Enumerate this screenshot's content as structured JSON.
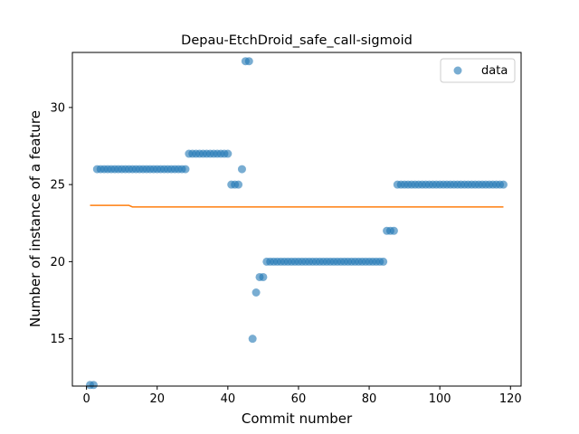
{
  "chart_data": {
    "type": "scatter",
    "title": "Depau-EtchDroid_safe_call-sigmoid",
    "xlabel": "Commit number",
    "ylabel": "Number of instance of a feature",
    "xlim": [
      -4,
      123
    ],
    "ylim": [
      11.93,
      33.57
    ],
    "xticks": [
      0,
      20,
      40,
      60,
      80,
      100,
      120
    ],
    "yticks": [
      15,
      20,
      25,
      30
    ],
    "grid": false,
    "legend": {
      "position": "top-right",
      "entries": [
        "data"
      ]
    },
    "colors": {
      "data": "#1f77b4",
      "fit": "#ff7f0e"
    },
    "series": [
      {
        "name": "data",
        "kind": "scatter",
        "points": [
          [
            1,
            12
          ],
          [
            2,
            12
          ],
          [
            3,
            26
          ],
          [
            4,
            26
          ],
          [
            5,
            26
          ],
          [
            6,
            26
          ],
          [
            7,
            26
          ],
          [
            8,
            26
          ],
          [
            9,
            26
          ],
          [
            10,
            26
          ],
          [
            11,
            26
          ],
          [
            12,
            26
          ],
          [
            13,
            26
          ],
          [
            14,
            26
          ],
          [
            15,
            26
          ],
          [
            16,
            26
          ],
          [
            17,
            26
          ],
          [
            18,
            26
          ],
          [
            19,
            26
          ],
          [
            20,
            26
          ],
          [
            21,
            26
          ],
          [
            22,
            26
          ],
          [
            23,
            26
          ],
          [
            24,
            26
          ],
          [
            25,
            26
          ],
          [
            26,
            26
          ],
          [
            27,
            26
          ],
          [
            28,
            26
          ],
          [
            29,
            27
          ],
          [
            30,
            27
          ],
          [
            31,
            27
          ],
          [
            32,
            27
          ],
          [
            33,
            27
          ],
          [
            34,
            27
          ],
          [
            35,
            27
          ],
          [
            36,
            27
          ],
          [
            37,
            27
          ],
          [
            38,
            27
          ],
          [
            39,
            27
          ],
          [
            40,
            27
          ],
          [
            41,
            25
          ],
          [
            42,
            25
          ],
          [
            43,
            25
          ],
          [
            44,
            26
          ],
          [
            45,
            33
          ],
          [
            46,
            33
          ],
          [
            47,
            15
          ],
          [
            48,
            18
          ],
          [
            49,
            19
          ],
          [
            50,
            19
          ],
          [
            51,
            20
          ],
          [
            52,
            20
          ],
          [
            53,
            20
          ],
          [
            54,
            20
          ],
          [
            55,
            20
          ],
          [
            56,
            20
          ],
          [
            57,
            20
          ],
          [
            58,
            20
          ],
          [
            59,
            20
          ],
          [
            60,
            20
          ],
          [
            61,
            20
          ],
          [
            62,
            20
          ],
          [
            63,
            20
          ],
          [
            64,
            20
          ],
          [
            65,
            20
          ],
          [
            66,
            20
          ],
          [
            67,
            20
          ],
          [
            68,
            20
          ],
          [
            69,
            20
          ],
          [
            70,
            20
          ],
          [
            71,
            20
          ],
          [
            72,
            20
          ],
          [
            73,
            20
          ],
          [
            74,
            20
          ],
          [
            75,
            20
          ],
          [
            76,
            20
          ],
          [
            77,
            20
          ],
          [
            78,
            20
          ],
          [
            79,
            20
          ],
          [
            80,
            20
          ],
          [
            81,
            20
          ],
          [
            82,
            20
          ],
          [
            83,
            20
          ],
          [
            84,
            20
          ],
          [
            85,
            22
          ],
          [
            86,
            22
          ],
          [
            87,
            22
          ],
          [
            88,
            25
          ],
          [
            89,
            25
          ],
          [
            90,
            25
          ],
          [
            91,
            25
          ],
          [
            92,
            25
          ],
          [
            93,
            25
          ],
          [
            94,
            25
          ],
          [
            95,
            25
          ],
          [
            96,
            25
          ],
          [
            97,
            25
          ],
          [
            98,
            25
          ],
          [
            99,
            25
          ],
          [
            100,
            25
          ],
          [
            101,
            25
          ],
          [
            102,
            25
          ],
          [
            103,
            25
          ],
          [
            104,
            25
          ],
          [
            105,
            25
          ],
          [
            106,
            25
          ],
          [
            107,
            25
          ],
          [
            108,
            25
          ],
          [
            109,
            25
          ],
          [
            110,
            25
          ],
          [
            111,
            25
          ],
          [
            112,
            25
          ],
          [
            113,
            25
          ],
          [
            114,
            25
          ],
          [
            115,
            25
          ],
          [
            116,
            25
          ],
          [
            117,
            25
          ],
          [
            118,
            25
          ]
        ]
      },
      {
        "kind": "line",
        "points": [
          [
            1,
            23.65
          ],
          [
            12,
            23.65
          ],
          [
            13,
            23.55
          ],
          [
            118,
            23.55
          ]
        ]
      }
    ]
  }
}
